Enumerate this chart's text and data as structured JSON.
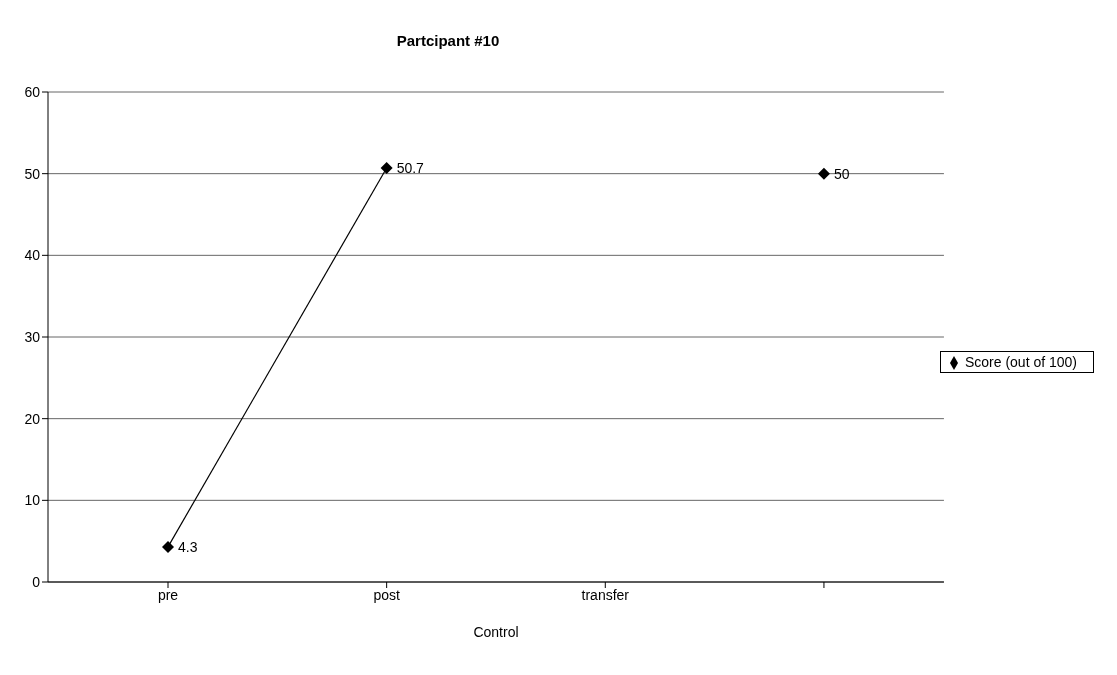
{
  "chart_data": {
    "type": "line",
    "title": "Partcipant #10",
    "xlabel": "Control",
    "categories": [
      "pre",
      "post",
      "transfer",
      null
    ],
    "series": [
      {
        "name": "Score (out of 100)",
        "color": "#000000",
        "values": [
          4.3,
          50.7,
          null,
          50
        ]
      }
    ],
    "ylim": [
      0,
      60
    ],
    "yticks": [
      0,
      10,
      20,
      30,
      40,
      50,
      60
    ],
    "grid": "y",
    "legend": "right",
    "marker": "diamond",
    "line_style": "solid",
    "data_labels": true
  }
}
